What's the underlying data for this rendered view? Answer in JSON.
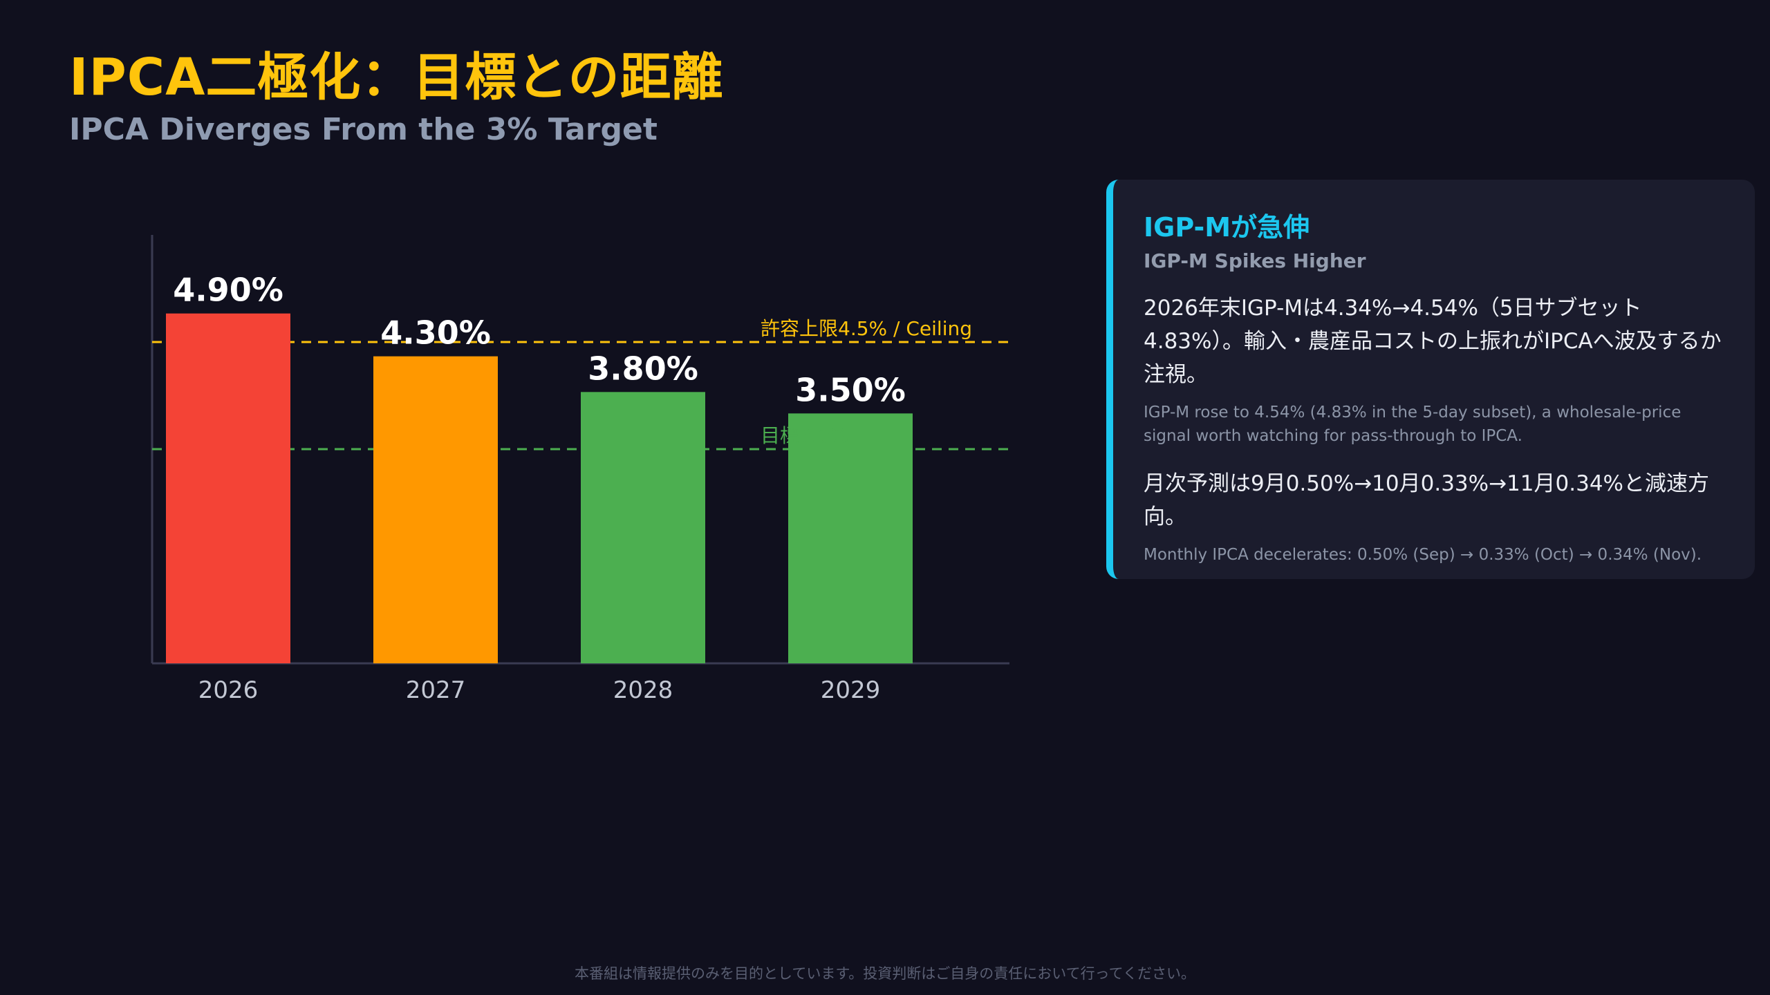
{
  "header": {
    "title": "IPCA二極化：目標との距離",
    "subtitle": "IPCA Diverges From the 3% Target"
  },
  "chart_data": {
    "type": "bar",
    "categories": [
      "2026",
      "2027",
      "2028",
      "2029"
    ],
    "values": [
      4.9,
      4.3,
      3.8,
      3.5
    ],
    "value_labels": [
      "4.90%",
      "4.30%",
      "3.80%",
      "3.50%"
    ],
    "bar_colors": [
      "#f44336",
      "#ff9800",
      "#4caf50",
      "#4caf50"
    ],
    "ylim": [
      0,
      6
    ],
    "grid": false,
    "reference_lines": [
      {
        "label": "許容上限4.5% / Ceiling",
        "value": 4.5,
        "color": "#ffc40c"
      },
      {
        "label": "目標3.0%",
        "value": 3.0,
        "color": "#4caf50"
      }
    ]
  },
  "card": {
    "title": "IGP-Mが急伸",
    "subtitle": "IGP-M Spikes Higher",
    "para1_jp": "2026年末IGP-Mは4.34%→4.54%（5日サブセット4.83%）。輸入・農産品コストの上振れがIPCAへ波及するか注視。",
    "para1_en": "IGP-M rose to 4.54% (4.83% in the 5-day subset), a wholesale-price signal worth watching for pass-through to IPCA.",
    "para2_jp": "月次予測は9月0.50%→10月0.33%→11月0.34%と減速方向。",
    "para2_en": "Monthly IPCA decelerates: 0.50% (Sep) → 0.33% (Oct) → 0.34% (Nov).",
    "accent_color": "#1cc7ef"
  },
  "footer": {
    "disclaimer": "本番組は情報提供のみを目的としています。投資判断はご自身の責任において行ってください。"
  }
}
